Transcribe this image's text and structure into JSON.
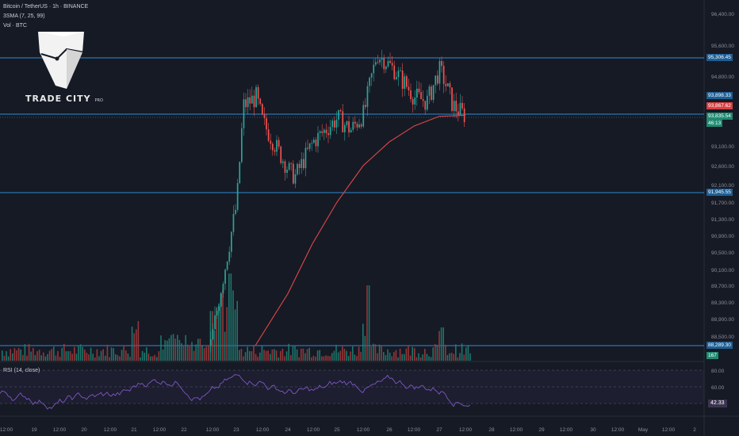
{
  "header": {
    "title": "Bitcoin / TetherUS · 1h · BINANCE",
    "indicator": "3SMA (7, 25, 99)",
    "volume": "Vol · BTC"
  },
  "logo": {
    "text": "TRADE CITY",
    "pro": "PRO"
  },
  "rsi": {
    "label": "RSI (14, close)",
    "value": "42.33",
    "levels": [
      "80.00",
      "60.00",
      "40.00"
    ]
  },
  "price_tags": {
    "r1": "95,306.45",
    "r2": "93,898.33",
    "sma": "93,867.62",
    "last": "93,835.54",
    "countdown": "46:13",
    "s1": "91,945.55",
    "s2": "88,289.30",
    "vol": "167"
  },
  "colors": {
    "background": "#161a25",
    "up": "#26a69a",
    "down": "#ef5350",
    "sma": "#e04848",
    "level_line": "#2e8bd3",
    "rsi": "#7e57c2"
  },
  "chart_data": {
    "type": "candlestick",
    "title": "Bitcoin / TetherUS · 1h · BINANCE",
    "y_ticks": [
      "96,400.00",
      "95,600.00",
      "94,800.00",
      "93,100.00",
      "92,600.00",
      "92,100.00",
      "91,700.00",
      "91,300.00",
      "90,900.00",
      "90,500.00",
      "90,100.00",
      "89,700.00",
      "89,300.00",
      "88,900.00",
      "88,500.00"
    ],
    "x_ticks": [
      "12:00",
      "19",
      "12:00",
      "20",
      "12:00",
      "21",
      "12:00",
      "22",
      "12:00",
      "23",
      "12:00",
      "24",
      "12:00",
      "25",
      "12:00",
      "26",
      "12:00",
      "27",
      "12:00",
      "28",
      "12:00",
      "29",
      "12:00",
      "30",
      "12:00",
      "May",
      "12:00",
      "2"
    ],
    "horizontal_levels": [
      95306.45,
      93898.33,
      91945.55,
      88289.3
    ],
    "price_path": [
      {
        "t": "22 12:00",
        "price": 88300
      },
      {
        "t": "23 00:00",
        "price": 91700
      },
      {
        "t": "23 03:00",
        "price": 94100
      },
      {
        "t": "23 09:00",
        "price": 94300
      },
      {
        "t": "23 12:00",
        "price": 93700
      },
      {
        "t": "24 00:00",
        "price": 92500
      },
      {
        "t": "24 03:00",
        "price": 92300
      },
      {
        "t": "24 12:00",
        "price": 93200
      },
      {
        "t": "25 00:00",
        "price": 93800
      },
      {
        "t": "25 06:00",
        "price": 93500
      },
      {
        "t": "25 12:00",
        "price": 93900
      },
      {
        "t": "25 18:00",
        "price": 95400
      },
      {
        "t": "26 00:00",
        "price": 95100
      },
      {
        "t": "26 06:00",
        "price": 94700
      },
      {
        "t": "26 12:00",
        "price": 94300
      },
      {
        "t": "26 18:00",
        "price": 94200
      },
      {
        "t": "27 00:00",
        "price": 95000
      },
      {
        "t": "27 06:00",
        "price": 94100
      },
      {
        "t": "27 12:00",
        "price": 93836
      }
    ],
    "sma_path": [
      {
        "t": "23 09:00",
        "price": 88300
      },
      {
        "t": "24 00:00",
        "price": 89500
      },
      {
        "t": "24 12:00",
        "price": 90700
      },
      {
        "t": "25 00:00",
        "price": 91700
      },
      {
        "t": "25 12:00",
        "price": 92600
      },
      {
        "t": "26 00:00",
        "price": 93200
      },
      {
        "t": "26 12:00",
        "price": 93600
      },
      {
        "t": "27 00:00",
        "price": 93840
      },
      {
        "t": "27 12:00",
        "price": 93868
      }
    ],
    "last_price": 93835.54,
    "sma_value": 93867.62,
    "volume_last": 167,
    "rsi_last": 42.33,
    "rsi_levels": [
      80,
      60,
      40
    ]
  }
}
